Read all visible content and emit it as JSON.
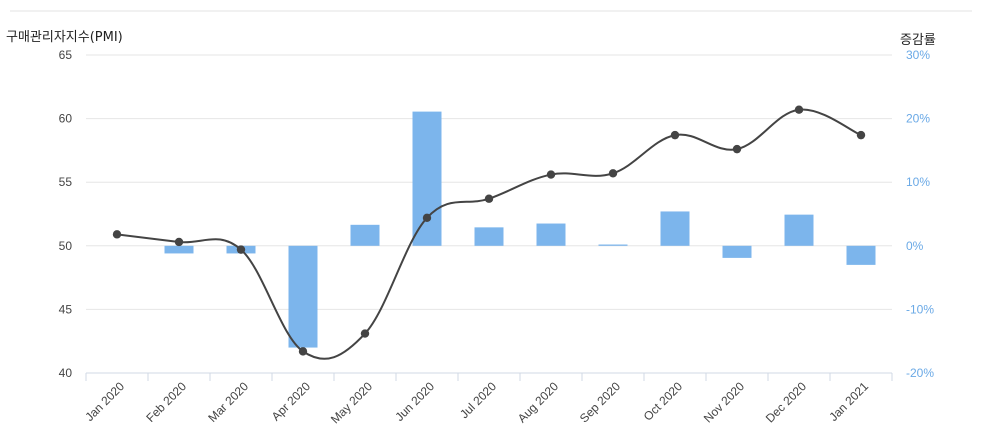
{
  "chart_data": {
    "type": "bar+line",
    "title": "",
    "y_left_label": "구매관리자지수(PMI)",
    "y_right_label": "증감률",
    "categories": [
      "Jan 2020",
      "Feb 2020",
      "Mar 2020",
      "Apr 2020",
      "May 2020",
      "Jun 2020",
      "Jul 2020",
      "Aug 2020",
      "Sep 2020",
      "Oct 2020",
      "Nov 2020",
      "Dec 2020",
      "Jan 2021"
    ],
    "ylim_left": [
      40,
      65
    ],
    "ylim_right": [
      -20,
      30
    ],
    "left_ticks": [
      "40",
      "45",
      "50",
      "55",
      "60",
      "65"
    ],
    "right_ticks": [
      "-20%",
      "-10%",
      "0%",
      "10%",
      "20%",
      "30%"
    ],
    "series": [
      {
        "kind": "line",
        "axis": "left",
        "values": [
          50.9,
          50.3,
          49.7,
          41.7,
          43.1,
          52.2,
          53.7,
          55.6,
          55.7,
          58.7,
          57.6,
          60.7,
          58.7
        ]
      },
      {
        "kind": "bar",
        "axis": "right",
        "values": [
          0.0,
          -1.2,
          -1.2,
          -16.0,
          3.3,
          21.1,
          2.9,
          3.5,
          0.2,
          5.4,
          -1.9,
          4.9,
          -3.0
        ]
      }
    ],
    "colors": {
      "line": "#444444",
      "bar": "#7cb5ec",
      "grid": "#e6e6e6",
      "right_axis": "#6aa9e6"
    },
    "grid": true,
    "legend": "none"
  }
}
